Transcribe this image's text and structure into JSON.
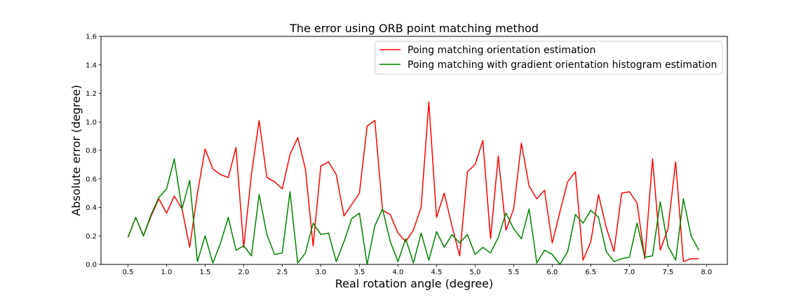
{
  "chart_data": {
    "type": "line",
    "title": "The error using ORB point matching method",
    "xlabel": "Real rotation angle (degree)",
    "ylabel": "Absolute error (degree)",
    "xlim": [
      0.15,
      8.27
    ],
    "ylim": [
      0.0,
      1.6
    ],
    "xticks": [
      0.5,
      1.0,
      1.5,
      2.0,
      2.5,
      3.0,
      3.5,
      4.0,
      4.5,
      5.0,
      5.5,
      6.0,
      6.5,
      7.0,
      7.5,
      8.0
    ],
    "xtick_labels": [
      "0.5",
      "1.0",
      "1.5",
      "2.0",
      "2.5",
      "3.0",
      "3.5",
      "4.0",
      "4.5",
      "5.0",
      "5.5",
      "6.0",
      "6.5",
      "7.0",
      "7.5",
      "8.0"
    ],
    "yticks": [
      0.0,
      0.2,
      0.4,
      0.6,
      0.8,
      1.0,
      1.2,
      1.4,
      1.6
    ],
    "ytick_labels": [
      "0.0",
      "0.2",
      "0.4",
      "0.6",
      "0.8",
      "1.0",
      "1.2",
      "1.4",
      "1.6"
    ],
    "grid": false,
    "legend_position": "top-right",
    "x": [
      0.5,
      0.6,
      0.7,
      0.8,
      0.9,
      1.0,
      1.1,
      1.2,
      1.3,
      1.4,
      1.5,
      1.6,
      1.7,
      1.8,
      1.9,
      2.0,
      2.1,
      2.2,
      2.3,
      2.4,
      2.5,
      2.6,
      2.7,
      2.8,
      2.9,
      3.0,
      3.1,
      3.2,
      3.3,
      3.4,
      3.5,
      3.6,
      3.7,
      3.8,
      3.9,
      4.0,
      4.1,
      4.2,
      4.3,
      4.4,
      4.5,
      4.6,
      4.7,
      4.8,
      4.9,
      5.0,
      5.1,
      5.2,
      5.3,
      5.4,
      5.5,
      5.6,
      5.7,
      5.8,
      5.9,
      6.0,
      6.1,
      6.2,
      6.3,
      6.4,
      6.5,
      6.6,
      6.7,
      6.8,
      6.9,
      7.0,
      7.1,
      7.2,
      7.3,
      7.4,
      7.5,
      7.6,
      7.7,
      7.8,
      7.9
    ],
    "series": [
      {
        "name": "Poing matching orientation estimation",
        "color": "#ff0000",
        "values": [
          0.19,
          0.33,
          0.2,
          0.34,
          0.46,
          0.36,
          0.48,
          0.39,
          0.12,
          0.5,
          0.81,
          0.67,
          0.63,
          0.61,
          0.82,
          0.12,
          0.63,
          1.01,
          0.61,
          0.58,
          0.53,
          0.77,
          0.89,
          0.67,
          0.13,
          0.69,
          0.72,
          0.63,
          0.34,
          0.42,
          0.5,
          0.97,
          1.01,
          0.38,
          0.35,
          0.22,
          0.16,
          0.24,
          0.4,
          1.14,
          0.33,
          0.5,
          0.27,
          0.06,
          0.65,
          0.7,
          0.87,
          0.18,
          0.76,
          0.24,
          0.39,
          0.85,
          0.55,
          0.46,
          0.52,
          0.15,
          0.37,
          0.58,
          0.65,
          0.03,
          0.16,
          0.49,
          0.26,
          0.09,
          0.5,
          0.51,
          0.43,
          0.04,
          0.74,
          0.1,
          0.25,
          0.72,
          0.02,
          0.04,
          0.04
        ]
      },
      {
        "name": "Poing matching with gradient orientation histogram estimation",
        "color": "#008000",
        "values": [
          0.19,
          0.33,
          0.2,
          0.35,
          0.47,
          0.53,
          0.74,
          0.39,
          0.59,
          0.02,
          0.2,
          0.01,
          0.15,
          0.33,
          0.1,
          0.13,
          0.06,
          0.49,
          0.21,
          0.07,
          0.08,
          0.51,
          0.01,
          0.08,
          0.29,
          0.21,
          0.22,
          0.02,
          0.16,
          0.32,
          0.36,
          0.0,
          0.27,
          0.39,
          0.16,
          0.02,
          0.18,
          0.01,
          0.22,
          0.03,
          0.23,
          0.12,
          0.21,
          0.15,
          0.21,
          0.07,
          0.12,
          0.08,
          0.19,
          0.36,
          0.25,
          0.18,
          0.39,
          0.01,
          0.1,
          0.07,
          0.0,
          0.09,
          0.35,
          0.29,
          0.38,
          0.33,
          0.09,
          0.02,
          0.04,
          0.05,
          0.29,
          0.05,
          0.06,
          0.44,
          0.13,
          0.03,
          0.46,
          0.2,
          0.1
        ]
      }
    ]
  }
}
